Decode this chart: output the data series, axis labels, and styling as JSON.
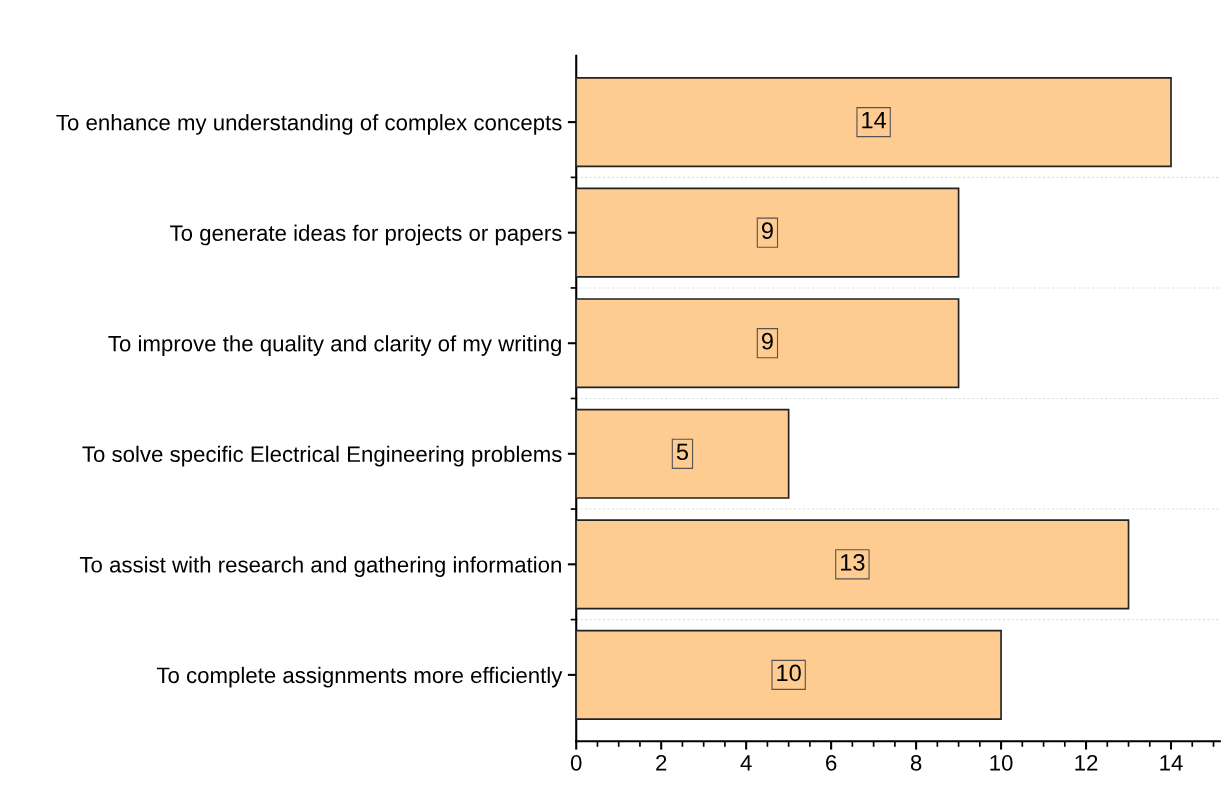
{
  "chart_data": {
    "type": "bar",
    "orientation": "horizontal",
    "categories": [
      "To enhance my understanding of complex concepts",
      "To generate ideas for projects or papers",
      "To improve the quality and clarity of my writing",
      "To solve specific Electrical Engineering problems",
      "To assist with research and gathering information",
      "To complete assignments more efficiently"
    ],
    "values": [
      14,
      9,
      9,
      5,
      13,
      10
    ],
    "color": "#fecb91",
    "xlim": [
      0,
      15.15
    ],
    "xticks": [
      0,
      2,
      4,
      6,
      8,
      10,
      12,
      14
    ],
    "data_labels": true,
    "grid": "y",
    "legend": false
  }
}
